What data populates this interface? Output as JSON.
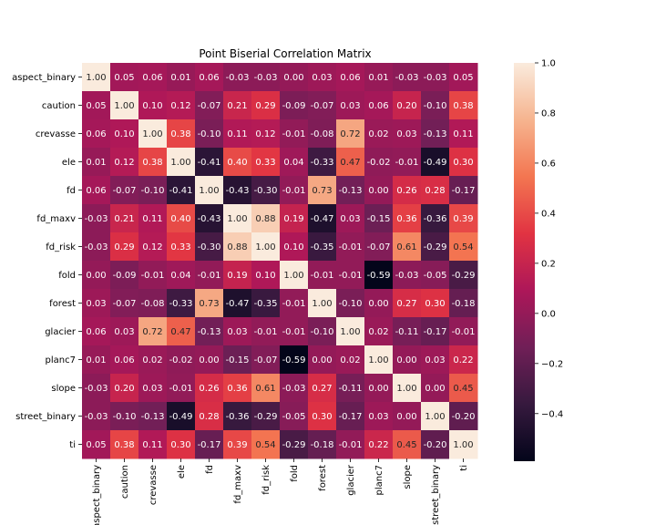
{
  "chart_data": {
    "type": "heatmap",
    "title": "Point Biserial Correlation Matrix",
    "xlabel": "",
    "ylabel": "",
    "labels": [
      "aspect_binary",
      "caution",
      "crevasse",
      "ele",
      "fd",
      "fd_maxv",
      "fd_risk",
      "fold",
      "forest",
      "glacier",
      "planc7",
      "slope",
      "street_binary",
      "ti"
    ],
    "values": [
      [
        1.0,
        0.05,
        0.06,
        0.01,
        0.06,
        -0.03,
        -0.03,
        0.0,
        0.03,
        0.06,
        0.01,
        -0.03,
        -0.03,
        0.05
      ],
      [
        0.05,
        1.0,
        0.1,
        0.12,
        -0.07,
        0.21,
        0.29,
        -0.09,
        -0.07,
        0.03,
        0.06,
        0.2,
        -0.1,
        0.38
      ],
      [
        0.06,
        0.1,
        1.0,
        0.38,
        -0.1,
        0.11,
        0.12,
        -0.01,
        -0.08,
        0.72,
        0.02,
        0.03,
        -0.13,
        0.11
      ],
      [
        0.01,
        0.12,
        0.38,
        1.0,
        -0.41,
        0.4,
        0.33,
        0.04,
        -0.33,
        0.47,
        -0.02,
        -0.01,
        -0.49,
        0.3
      ],
      [
        0.06,
        -0.07,
        -0.1,
        -0.41,
        1.0,
        -0.43,
        -0.3,
        -0.01,
        0.73,
        -0.13,
        0.0,
        0.26,
        0.28,
        -0.17
      ],
      [
        -0.03,
        0.21,
        0.11,
        0.4,
        -0.43,
        1.0,
        0.88,
        0.19,
        -0.47,
        0.03,
        -0.15,
        0.36,
        -0.36,
        0.39
      ],
      [
        -0.03,
        0.29,
        0.12,
        0.33,
        -0.3,
        0.88,
        1.0,
        0.1,
        -0.35,
        -0.01,
        -0.07,
        0.61,
        -0.29,
        0.54
      ],
      [
        0.0,
        -0.09,
        -0.01,
        0.04,
        -0.01,
        0.19,
        0.1,
        1.0,
        -0.01,
        -0.01,
        -0.59,
        -0.03,
        -0.05,
        -0.29
      ],
      [
        0.03,
        -0.07,
        -0.08,
        -0.33,
        0.73,
        -0.47,
        -0.35,
        -0.01,
        1.0,
        -0.1,
        0.0,
        0.27,
        0.3,
        -0.18
      ],
      [
        0.06,
        0.03,
        0.72,
        0.47,
        -0.13,
        0.03,
        -0.01,
        -0.01,
        -0.1,
        1.0,
        0.02,
        -0.11,
        -0.17,
        -0.01
      ],
      [
        0.01,
        0.06,
        0.02,
        -0.02,
        0.0,
        -0.15,
        -0.07,
        -0.59,
        0.0,
        0.02,
        1.0,
        0.0,
        0.03,
        0.22
      ],
      [
        -0.03,
        0.2,
        0.03,
        -0.01,
        0.26,
        0.36,
        0.61,
        -0.03,
        0.27,
        -0.11,
        0.0,
        1.0,
        0.0,
        0.45
      ],
      [
        -0.03,
        -0.1,
        -0.13,
        -0.49,
        0.28,
        -0.36,
        -0.29,
        -0.05,
        0.3,
        -0.17,
        0.03,
        0.0,
        1.0,
        -0.2
      ],
      [
        0.05,
        0.38,
        0.11,
        0.3,
        -0.17,
        0.39,
        0.54,
        -0.29,
        -0.18,
        -0.01,
        0.22,
        0.45,
        -0.2,
        1.0
      ]
    ],
    "colorbar": {
      "vmin": -0.59,
      "vmax": 1.0,
      "ticks": [
        1.0,
        0.8,
        0.6,
        0.4,
        0.2,
        0.0,
        -0.2,
        -0.4
      ],
      "tick_labels": [
        "1.0",
        "0.8",
        "0.6",
        "0.4",
        "0.2",
        "0.0",
        "−0.2",
        "−0.4"
      ],
      "colormap": "rocket",
      "colormap_stops": [
        "#03051a",
        "#36193e",
        "#701f57",
        "#ad1759",
        "#e13342",
        "#f37651",
        "#f6b48f",
        "#faebdd"
      ]
    },
    "annotation_format": "2 decimals",
    "grid": false,
    "legend": "none"
  }
}
